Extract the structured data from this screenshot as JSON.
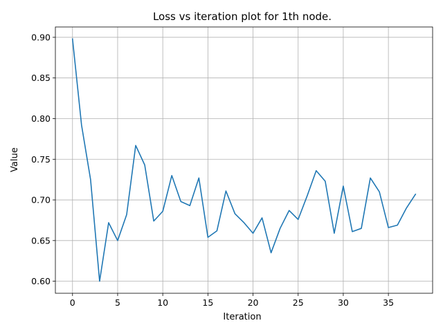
{
  "chart_data": {
    "type": "line",
    "title": "Loss vs iteration plot for 1th node.",
    "xlabel": "Iteration",
    "ylabel": "Value",
    "xlim": [
      -1.9,
      39.9
    ],
    "ylim": [
      0.5852,
      0.9127
    ],
    "xticks": [
      0,
      5,
      10,
      15,
      20,
      25,
      30,
      35
    ],
    "xtick_labels": [
      "0",
      "5",
      "10",
      "15",
      "20",
      "25",
      "30",
      "35"
    ],
    "yticks": [
      0.6,
      0.65,
      0.7,
      0.75,
      0.8,
      0.85,
      0.9
    ],
    "ytick_labels": [
      "0.60",
      "0.65",
      "0.70",
      "0.75",
      "0.80",
      "0.85",
      "0.90"
    ],
    "grid": true,
    "series": [
      {
        "color": "#1f77b4",
        "x": [
          0,
          1,
          2,
          3,
          4,
          5,
          6,
          7,
          8,
          9,
          10,
          11,
          12,
          13,
          14,
          15,
          16,
          17,
          18,
          19,
          20,
          21,
          22,
          23,
          24,
          25,
          26,
          27,
          28,
          29,
          30,
          31,
          32,
          33,
          34,
          35,
          36,
          37,
          38
        ],
        "values": [
          0.898,
          0.792,
          0.725,
          0.6,
          0.672,
          0.65,
          0.682,
          0.767,
          0.743,
          0.674,
          0.686,
          0.73,
          0.698,
          0.693,
          0.727,
          0.654,
          0.662,
          0.711,
          0.683,
          0.672,
          0.659,
          0.678,
          0.635,
          0.665,
          0.687,
          0.676,
          0.705,
          0.736,
          0.723,
          0.659,
          0.717,
          0.661,
          0.665,
          0.727,
          0.71,
          0.666,
          0.669,
          0.69,
          0.707
        ]
      }
    ]
  }
}
